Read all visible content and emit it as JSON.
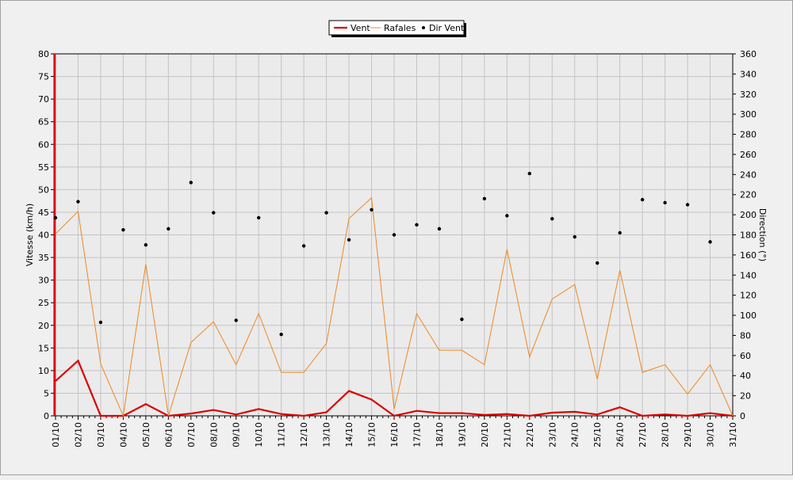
{
  "chart_data": {
    "type": "line",
    "legend": {
      "position": "top-center",
      "entries": [
        {
          "label": "Vent",
          "color": "#dd0000",
          "marker": "line"
        },
        {
          "label": "Rafales",
          "color": "#ee8822",
          "marker": "line"
        },
        {
          "label": "Dir Vent",
          "color": "#000000",
          "marker": "dot"
        }
      ]
    },
    "ylabel": "Vitesse (km/h)",
    "y2label": "Direction (°)",
    "ylim": [
      0,
      80
    ],
    "y2lim": [
      0,
      360
    ],
    "yticks": [
      0,
      5,
      10,
      15,
      20,
      25,
      30,
      35,
      40,
      45,
      50,
      55,
      60,
      65,
      70,
      75,
      80
    ],
    "y2ticks": [
      0,
      20,
      40,
      60,
      80,
      100,
      120,
      140,
      160,
      180,
      200,
      220,
      240,
      260,
      280,
      300,
      320,
      340,
      360
    ],
    "grid": true,
    "categories": [
      "01/10",
      "02/10",
      "03/10",
      "04/10",
      "05/10",
      "06/10",
      "07/10",
      "08/10",
      "09/10",
      "10/10",
      "11/10",
      "12/10",
      "13/10",
      "14/10",
      "15/10",
      "16/10",
      "17/10",
      "18/10",
      "19/10",
      "20/10",
      "21/10",
      "22/10",
      "23/10",
      "24/10",
      "25/10",
      "26/10",
      "27/10",
      "28/10",
      "29/10",
      "30/10",
      "31/10"
    ],
    "series": [
      {
        "name": "Vent",
        "axis": "left",
        "color": "#dd0000",
        "values": [
          7.7,
          12.2,
          0,
          0,
          2.6,
          0,
          0.5,
          1.3,
          0.3,
          1.5,
          0.4,
          0,
          0.8,
          5.5,
          3.6,
          0,
          1.1,
          0.6,
          0.6,
          0.2,
          0.4,
          0,
          0.7,
          0.9,
          0.3,
          1.9,
          0,
          0.3,
          0,
          0.6,
          0
        ]
      },
      {
        "name": "Rafales",
        "axis": "left",
        "color": "#ee8822",
        "values": [
          40.2,
          45.2,
          11.5,
          0,
          33.5,
          0,
          16.2,
          20.8,
          11.3,
          22.6,
          9.6,
          9.6,
          16,
          43.6,
          48.2,
          1.5,
          22.6,
          14.5,
          14.5,
          11.3,
          36.8,
          13,
          25.8,
          29,
          8.1,
          32.2,
          9.6,
          11.3,
          4.8,
          11.3,
          0
        ]
      },
      {
        "name": "Dir Vent",
        "axis": "right",
        "color": "#000000",
        "values": [
          197,
          213,
          93,
          185,
          170,
          186,
          232,
          202,
          95,
          197,
          81,
          169,
          202,
          175,
          205,
          180,
          190,
          186,
          96,
          216,
          199,
          241,
          196,
          178,
          152,
          182,
          215,
          212,
          210,
          173,
          null
        ]
      }
    ]
  }
}
